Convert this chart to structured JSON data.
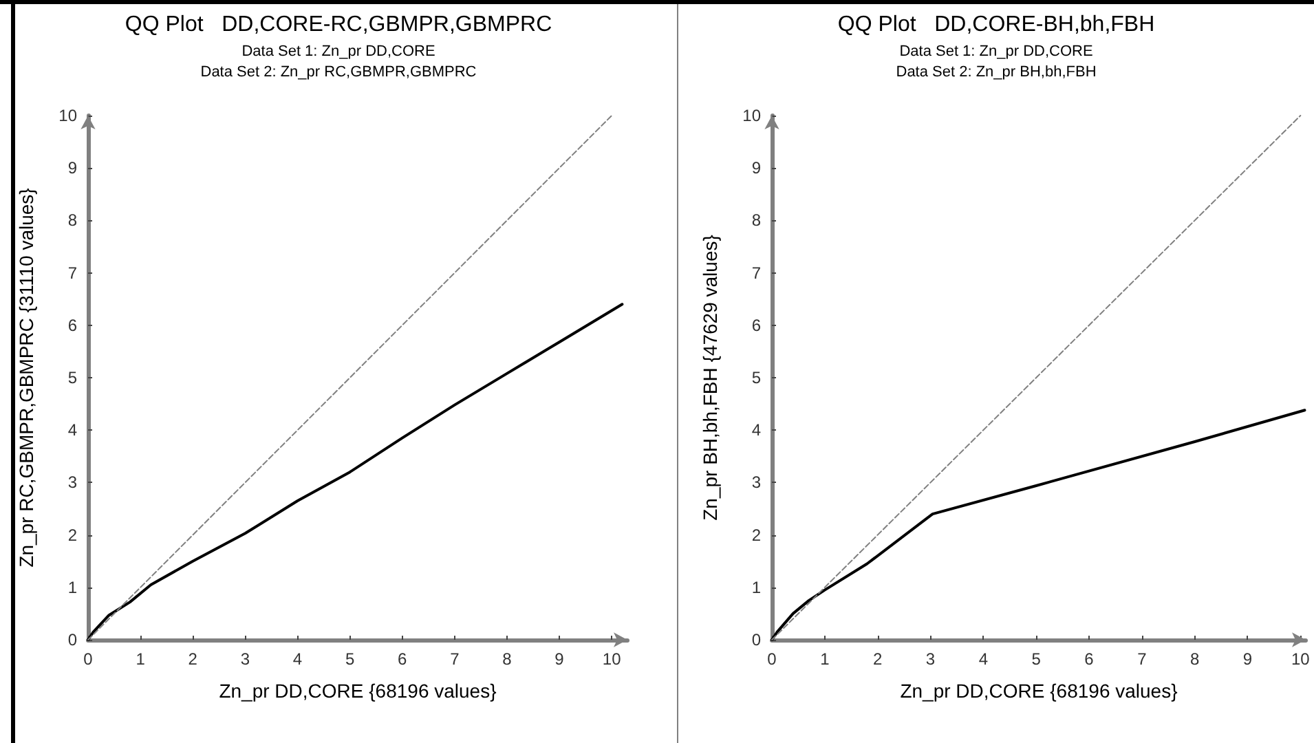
{
  "chart_data": [
    {
      "type": "line",
      "title": "QQ Plot   DD,CORE-RC,GBMPR,GBMPRC",
      "subtitle": "Data Set 1: Zn_pr DD,CORE\nData Set 2: Zn_pr RC,GBMPR,GBMPRC",
      "xlabel": "Zn_pr DD,CORE {68196 values}",
      "ylabel": "Zn_pr RC,GBMPR,GBMPRC {31110 values}",
      "xlim": [
        0,
        10.3
      ],
      "ylim": [
        0,
        10
      ],
      "xticks": [
        0,
        1,
        2,
        3,
        4,
        5,
        6,
        7,
        8,
        9,
        10
      ],
      "yticks": [
        0,
        1,
        2,
        3,
        4,
        5,
        6,
        7,
        8,
        9,
        10
      ],
      "grid": false,
      "marker": "none",
      "series": [
        {
          "color": "#000000",
          "line_style": "solid",
          "x": [
            0,
            0.1,
            0.4,
            0.8,
            1.2,
            2,
            3,
            4,
            5,
            6,
            7,
            8,
            9,
            10.2
          ],
          "values": [
            0,
            0.15,
            0.47,
            0.72,
            1.05,
            1.5,
            2.03,
            2.65,
            3.2,
            3.85,
            4.48,
            5.08,
            5.68,
            6.4
          ]
        },
        {
          "color": "#808080",
          "line_style": "dashed",
          "x": [
            0,
            10
          ],
          "values": [
            0,
            10
          ]
        }
      ]
    },
    {
      "type": "line",
      "title": "QQ Plot   DD,CORE-BH,bh,FBH",
      "subtitle": "Data Set 1: Zn_pr DD,CORE\nData Set 2: Zn_pr BH,bh,FBH",
      "xlabel": "Zn_pr DD,CORE {68196 values}",
      "ylabel": "Zn_pr BH,bh,FBH {47629 values}",
      "xlim": [
        0,
        10.1
      ],
      "ylim": [
        0,
        10
      ],
      "xticks": [
        0,
        1,
        2,
        3,
        4,
        5,
        6,
        7,
        8,
        9,
        10
      ],
      "yticks": [
        0,
        1,
        2,
        3,
        4,
        5,
        6,
        7,
        8,
        9,
        10
      ],
      "grid": false,
      "marker": "none",
      "series": [
        {
          "color": "#000000",
          "line_style": "solid",
          "x": [
            0,
            0.1,
            0.4,
            0.7,
            1,
            1.8,
            3.04,
            5,
            8,
            10.08
          ],
          "values": [
            0,
            0.15,
            0.5,
            0.75,
            0.95,
            1.45,
            2.4,
            2.94,
            3.78,
            4.38
          ]
        },
        {
          "color": "#808080",
          "line_style": "dashed",
          "x": [
            0,
            10
          ],
          "values": [
            0,
            10
          ]
        }
      ]
    }
  ]
}
